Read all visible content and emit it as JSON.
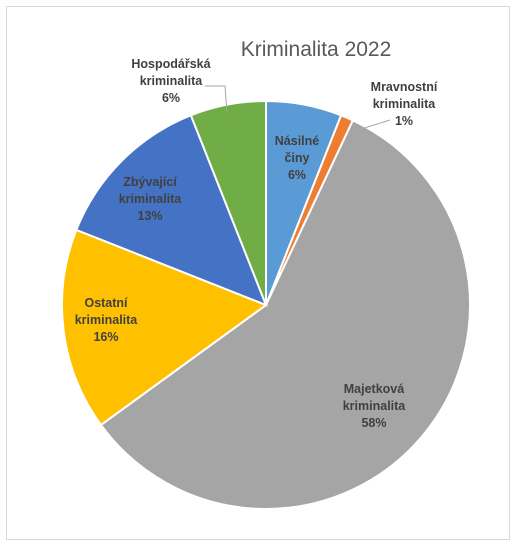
{
  "chart_data": {
    "type": "pie",
    "title": "Kriminalita 2022",
    "slices": [
      {
        "name": "Násilné činy",
        "lines": [
          "Násilné",
          "činy"
        ],
        "value": 6,
        "pct_label": "6%",
        "color": "#5b9bd5",
        "label_color": "#404040"
      },
      {
        "name": "Mravnostní kriminalita",
        "lines": [
          "Mravnostní",
          "kriminalita"
        ],
        "value": 1,
        "pct_label": "1%",
        "color": "#ed7d31",
        "label_color": "#404040"
      },
      {
        "name": "Majetková kriminalita",
        "lines": [
          "Majetková",
          "kriminalita"
        ],
        "value": 58,
        "pct_label": "58%",
        "color": "#a5a5a5",
        "label_color": "#404040"
      },
      {
        "name": "Ostatní kriminalita",
        "lines": [
          "Ostatní",
          "kriminalita"
        ],
        "value": 16,
        "pct_label": "16%",
        "color": "#ffc000",
        "label_color": "#404040"
      },
      {
        "name": "Zbývající kriminalita",
        "lines": [
          "Zbývající",
          "kriminalita"
        ],
        "value": 13,
        "pct_label": "13%",
        "color": "#4472c4",
        "label_color": "#404040"
      },
      {
        "name": "Hospodářská kriminalita",
        "lines": [
          "Hospodářská",
          "kriminalita"
        ],
        "value": 6,
        "pct_label": "6%",
        "color": "#70ad47",
        "label_color": "#404040"
      }
    ],
    "legend": "none",
    "labels": "data-labels-with-category-and-percent"
  }
}
